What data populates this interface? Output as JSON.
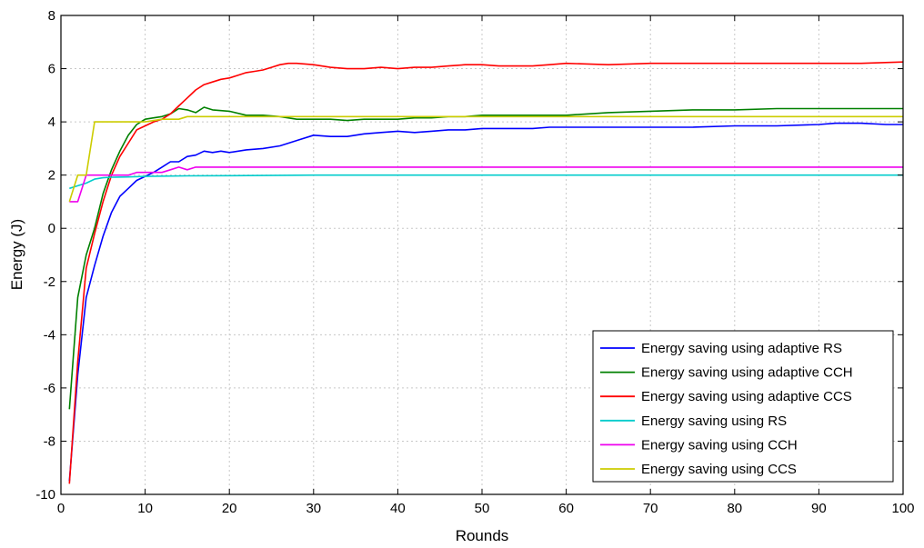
{
  "chart_data": {
    "type": "line",
    "title": "",
    "xlabel": "Rounds",
    "ylabel": "Energy (J)",
    "xlim": [
      0,
      100
    ],
    "ylim": [
      -10,
      8
    ],
    "xticks": [
      0,
      10,
      20,
      30,
      40,
      50,
      60,
      70,
      80,
      90,
      100
    ],
    "yticks": [
      -10,
      -8,
      -6,
      -4,
      -2,
      0,
      2,
      4,
      6,
      8
    ],
    "grid": true,
    "legend_position": "bottom-right",
    "series": [
      {
        "name": "Energy saving using adaptive RS",
        "color": "#0000ff",
        "x": [
          1,
          2,
          3,
          4,
          5,
          6,
          7,
          8,
          9,
          10,
          11,
          12,
          13,
          14,
          15,
          16,
          17,
          18,
          19,
          20,
          22,
          24,
          26,
          28,
          30,
          32,
          34,
          36,
          38,
          40,
          42,
          44,
          46,
          48,
          50,
          52,
          54,
          56,
          58,
          60,
          65,
          70,
          75,
          80,
          85,
          90,
          92,
          95,
          98,
          100
        ],
        "y": [
          -9.5,
          -5.5,
          -2.6,
          -1.4,
          -0.3,
          0.6,
          1.2,
          1.5,
          1.8,
          1.95,
          2.1,
          2.3,
          2.5,
          2.5,
          2.7,
          2.75,
          2.9,
          2.85,
          2.9,
          2.85,
          2.95,
          3.0,
          3.1,
          3.3,
          3.5,
          3.45,
          3.45,
          3.55,
          3.6,
          3.65,
          3.6,
          3.65,
          3.7,
          3.7,
          3.75,
          3.75,
          3.75,
          3.75,
          3.8,
          3.8,
          3.8,
          3.8,
          3.8,
          3.85,
          3.85,
          3.9,
          3.95,
          3.95,
          3.9,
          3.9
        ]
      },
      {
        "name": "Energy saving using adaptive CCH",
        "color": "#008000",
        "x": [
          1,
          2,
          3,
          4,
          5,
          6,
          7,
          8,
          9,
          10,
          11,
          12,
          13,
          14,
          15,
          16,
          17,
          18,
          20,
          22,
          24,
          26,
          28,
          30,
          32,
          34,
          36,
          38,
          40,
          42,
          44,
          46,
          48,
          50,
          55,
          60,
          65,
          70,
          75,
          80,
          85,
          90,
          95,
          100
        ],
        "y": [
          -6.8,
          -2.6,
          -1.0,
          0.0,
          1.3,
          2.2,
          2.9,
          3.5,
          3.9,
          4.1,
          4.15,
          4.2,
          4.3,
          4.5,
          4.45,
          4.35,
          4.55,
          4.45,
          4.4,
          4.25,
          4.25,
          4.2,
          4.1,
          4.1,
          4.1,
          4.05,
          4.1,
          4.1,
          4.1,
          4.15,
          4.15,
          4.2,
          4.2,
          4.25,
          4.25,
          4.25,
          4.35,
          4.4,
          4.45,
          4.45,
          4.5,
          4.5,
          4.5,
          4.5
        ]
      },
      {
        "name": "Energy saving using adaptive CCS",
        "color": "#ff0000",
        "x": [
          1,
          2,
          3,
          4,
          5,
          6,
          7,
          8,
          9,
          10,
          11,
          12,
          13,
          14,
          15,
          16,
          17,
          18,
          19,
          20,
          21,
          22,
          23,
          24,
          25,
          26,
          27,
          28,
          30,
          32,
          34,
          36,
          38,
          40,
          42,
          44,
          46,
          48,
          50,
          52,
          54,
          56,
          58,
          60,
          65,
          70,
          75,
          80,
          85,
          90,
          95,
          100
        ],
        "y": [
          -9.6,
          -5.0,
          -1.5,
          -0.2,
          1.0,
          2.0,
          2.7,
          3.2,
          3.7,
          3.85,
          4.0,
          4.1,
          4.3,
          4.6,
          4.9,
          5.2,
          5.4,
          5.5,
          5.6,
          5.65,
          5.75,
          5.85,
          5.9,
          5.95,
          6.05,
          6.15,
          6.2,
          6.2,
          6.15,
          6.05,
          6.0,
          6.0,
          6.05,
          6.0,
          6.05,
          6.05,
          6.1,
          6.15,
          6.15,
          6.1,
          6.1,
          6.1,
          6.15,
          6.2,
          6.15,
          6.2,
          6.2,
          6.2,
          6.2,
          6.2,
          6.2,
          6.25
        ]
      },
      {
        "name": "Energy saving using RS",
        "color": "#00cccc",
        "x": [
          1,
          2,
          3,
          4,
          5,
          6,
          8,
          10,
          15,
          20,
          30,
          40,
          50,
          60,
          70,
          80,
          90,
          100
        ],
        "y": [
          1.5,
          1.6,
          1.7,
          1.85,
          1.9,
          1.92,
          1.93,
          1.95,
          1.97,
          1.98,
          2.0,
          2.0,
          2.0,
          2.0,
          2.0,
          2.0,
          2.0,
          2.0
        ]
      },
      {
        "name": "Energy saving using CCH",
        "color": "#ee00ee",
        "x": [
          1,
          2,
          3,
          4,
          5,
          8,
          9,
          10,
          12,
          13,
          14,
          15,
          16,
          17,
          20,
          30,
          40,
          50,
          60,
          70,
          80,
          90,
          100
        ],
        "y": [
          1.0,
          1.0,
          2.0,
          2.0,
          2.0,
          2.0,
          2.1,
          2.1,
          2.1,
          2.2,
          2.3,
          2.2,
          2.3,
          2.3,
          2.3,
          2.3,
          2.3,
          2.3,
          2.3,
          2.3,
          2.3,
          2.3,
          2.3
        ]
      },
      {
        "name": "Energy saving using CCS",
        "color": "#cccc00",
        "x": [
          1,
          2,
          3,
          4,
          5,
          6,
          8,
          10,
          12,
          14,
          15,
          16,
          20,
          30,
          40,
          50,
          60,
          70,
          80,
          90,
          100
        ],
        "y": [
          1.0,
          2.0,
          2.0,
          4.0,
          4.0,
          4.0,
          4.0,
          4.0,
          4.1,
          4.1,
          4.2,
          4.2,
          4.2,
          4.2,
          4.2,
          4.2,
          4.2,
          4.2,
          4.2,
          4.2,
          4.2
        ]
      }
    ]
  }
}
